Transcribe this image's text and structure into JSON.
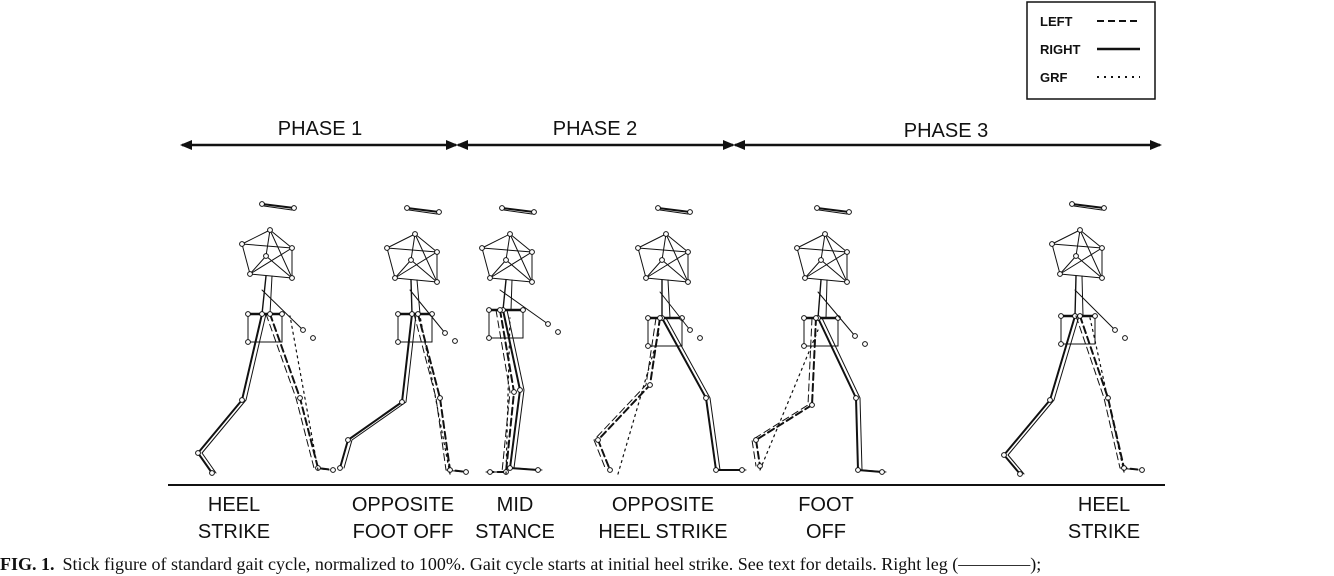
{
  "legend": {
    "items": [
      {
        "label": "LEFT",
        "style": "dashed"
      },
      {
        "label": "RIGHT",
        "style": "solid"
      },
      {
        "label": "GRF",
        "style": "dotted"
      }
    ]
  },
  "phases": [
    {
      "label": "PHASE 1"
    },
    {
      "label": "PHASE 2"
    },
    {
      "label": "PHASE 3"
    }
  ],
  "events": [
    {
      "line1": "HEEL",
      "line2": "STRIKE"
    },
    {
      "line1": "OPPOSITE",
      "line2": "FOOT OFF"
    },
    {
      "line1": "MID",
      "line2": "STANCE"
    },
    {
      "line1": "OPPOSITE",
      "line2": "HEEL STRIKE"
    },
    {
      "line1": "FOOT",
      "line2": "OFF"
    },
    {
      "line1": "HEEL",
      "line2": "STRIKE"
    }
  ],
  "caption": {
    "figure_label": "FIG. 1.",
    "text": "Stick figure of standard gait cycle, normalized to 100%. Gait cycle starts at initial heel strike. See text for details. Right leg (————);"
  },
  "colors": {
    "ink": "#111111",
    "background": "#ffffff"
  }
}
